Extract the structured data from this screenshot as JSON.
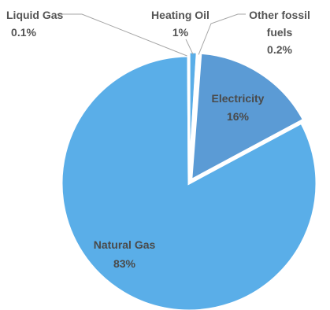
{
  "chart_data": {
    "type": "pie",
    "title": "",
    "slices": [
      {
        "name": "Heating Oil",
        "value": 1,
        "value_label": "1%",
        "color": "#5aaee8",
        "exploded": true
      },
      {
        "name": "Other fossil fuels",
        "value": 0.2,
        "value_label": "0.2%",
        "color": "#5aaee8",
        "exploded": true
      },
      {
        "name": "Electricity",
        "value": 16,
        "value_label": "16%",
        "color": "#5b9bd5",
        "exploded": true
      },
      {
        "name": "Natural Gas",
        "value": 83,
        "value_label": "83%",
        "color": "#5aaee8",
        "exploded": false
      },
      {
        "name": "Liquid Gas",
        "value": 0.1,
        "value_label": "0.1%",
        "color": "#5aaee8",
        "exploded": true
      }
    ],
    "legend": "none",
    "slice_border_color": "#ffffff",
    "label_line_color": "#a6a6a6"
  }
}
